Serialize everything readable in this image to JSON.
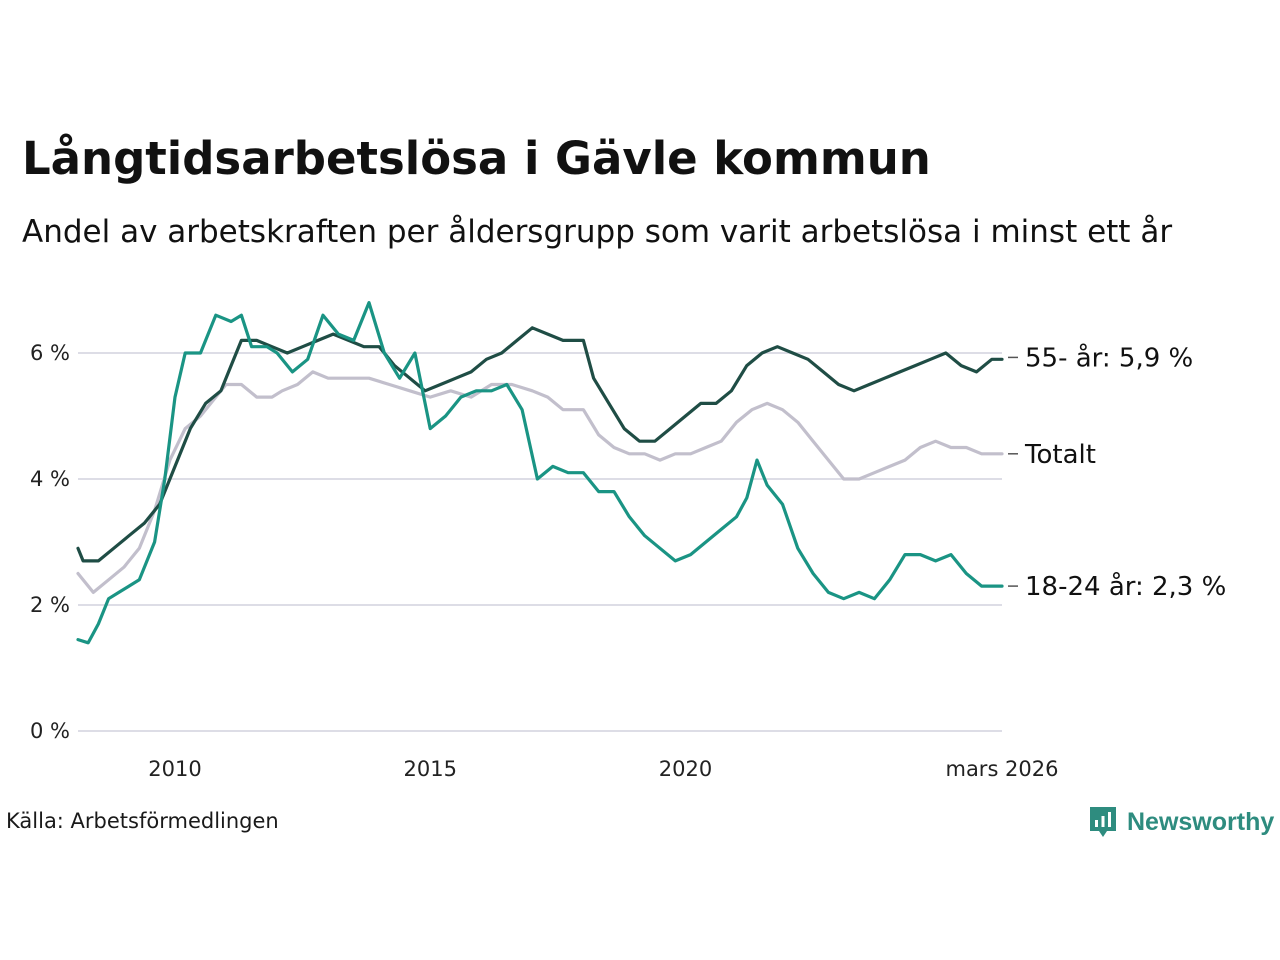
{
  "title": "Långtidsarbetslösa i Gävle kommun",
  "subtitle": "Andel av arbetskraften per åldersgrupp som varit arbetslösa i minst ett år",
  "source": "Källa: Arbetsförmedlingen",
  "brand": "Newsworthy",
  "colors": {
    "series_55": "#1f4d45",
    "series_total": "#c2bfcc",
    "series_18_24": "#1a9484",
    "grid": "#dddde6",
    "brand": "#2e8c7f"
  },
  "chart_data": {
    "type": "line",
    "title": "Långtidsarbetslösa i Gävle kommun",
    "xlabel": "",
    "ylabel": "",
    "xlim": [
      2008.1,
      2026.2
    ],
    "ylim": [
      0,
      7
    ],
    "y_ticks": [
      0,
      2,
      4,
      6
    ],
    "y_tick_labels": [
      "0 %",
      "2 %",
      "4 %",
      "6 %"
    ],
    "x_ticks": [
      2010,
      2015,
      2020,
      2026.2
    ],
    "x_tick_labels": [
      "2010",
      "2015",
      "2020",
      "mars 2026"
    ],
    "grid": true,
    "series": [
      {
        "name": "Totalt",
        "end_label": "Totalt",
        "color_key": "series_total",
        "points": [
          [
            2008.1,
            2.5
          ],
          [
            2008.4,
            2.2
          ],
          [
            2008.7,
            2.4
          ],
          [
            2009.0,
            2.6
          ],
          [
            2009.3,
            2.9
          ],
          [
            2009.6,
            3.5
          ],
          [
            2009.9,
            4.3
          ],
          [
            2010.2,
            4.8
          ],
          [
            2010.5,
            5.0
          ],
          [
            2010.8,
            5.3
          ],
          [
            2011.0,
            5.5
          ],
          [
            2011.3,
            5.5
          ],
          [
            2011.6,
            5.3
          ],
          [
            2011.9,
            5.3
          ],
          [
            2012.1,
            5.4
          ],
          [
            2012.4,
            5.5
          ],
          [
            2012.7,
            5.7
          ],
          [
            2013.0,
            5.6
          ],
          [
            2013.4,
            5.6
          ],
          [
            2013.8,
            5.6
          ],
          [
            2014.2,
            5.5
          ],
          [
            2014.6,
            5.4
          ],
          [
            2015.0,
            5.3
          ],
          [
            2015.4,
            5.4
          ],
          [
            2015.8,
            5.3
          ],
          [
            2016.2,
            5.5
          ],
          [
            2016.6,
            5.5
          ],
          [
            2017.0,
            5.4
          ],
          [
            2017.3,
            5.3
          ],
          [
            2017.6,
            5.1
          ],
          [
            2018.0,
            5.1
          ],
          [
            2018.3,
            4.7
          ],
          [
            2018.6,
            4.5
          ],
          [
            2018.9,
            4.4
          ],
          [
            2019.2,
            4.4
          ],
          [
            2019.5,
            4.3
          ],
          [
            2019.8,
            4.4
          ],
          [
            2020.1,
            4.4
          ],
          [
            2020.4,
            4.5
          ],
          [
            2020.7,
            4.6
          ],
          [
            2021.0,
            4.9
          ],
          [
            2021.3,
            5.1
          ],
          [
            2021.6,
            5.2
          ],
          [
            2021.9,
            5.1
          ],
          [
            2022.2,
            4.9
          ],
          [
            2022.5,
            4.6
          ],
          [
            2022.8,
            4.3
          ],
          [
            2023.1,
            4.0
          ],
          [
            2023.4,
            4.0
          ],
          [
            2023.7,
            4.1
          ],
          [
            2024.0,
            4.2
          ],
          [
            2024.3,
            4.3
          ],
          [
            2024.6,
            4.5
          ],
          [
            2024.9,
            4.6
          ],
          [
            2025.2,
            4.5
          ],
          [
            2025.5,
            4.5
          ],
          [
            2025.8,
            4.4
          ],
          [
            2026.2,
            4.4
          ]
        ]
      },
      {
        "name": "55- år",
        "end_label": "55- år: 5,9 %",
        "color_key": "series_55",
        "points": [
          [
            2008.1,
            2.9
          ],
          [
            2008.2,
            2.7
          ],
          [
            2008.5,
            2.7
          ],
          [
            2008.8,
            2.9
          ],
          [
            2009.1,
            3.1
          ],
          [
            2009.4,
            3.3
          ],
          [
            2009.7,
            3.6
          ],
          [
            2010.0,
            4.2
          ],
          [
            2010.3,
            4.8
          ],
          [
            2010.6,
            5.2
          ],
          [
            2010.9,
            5.4
          ],
          [
            2011.1,
            5.8
          ],
          [
            2011.3,
            6.2
          ],
          [
            2011.6,
            6.2
          ],
          [
            2011.9,
            6.1
          ],
          [
            2012.2,
            6.0
          ],
          [
            2012.5,
            6.1
          ],
          [
            2012.8,
            6.2
          ],
          [
            2013.1,
            6.3
          ],
          [
            2013.4,
            6.2
          ],
          [
            2013.7,
            6.1
          ],
          [
            2014.0,
            6.1
          ],
          [
            2014.3,
            5.8
          ],
          [
            2014.6,
            5.6
          ],
          [
            2014.9,
            5.4
          ],
          [
            2015.2,
            5.5
          ],
          [
            2015.5,
            5.6
          ],
          [
            2015.8,
            5.7
          ],
          [
            2016.1,
            5.9
          ],
          [
            2016.4,
            6.0
          ],
          [
            2016.7,
            6.2
          ],
          [
            2017.0,
            6.4
          ],
          [
            2017.3,
            6.3
          ],
          [
            2017.6,
            6.2
          ],
          [
            2018.0,
            6.2
          ],
          [
            2018.2,
            5.6
          ],
          [
            2018.5,
            5.2
          ],
          [
            2018.8,
            4.8
          ],
          [
            2019.1,
            4.6
          ],
          [
            2019.4,
            4.6
          ],
          [
            2019.7,
            4.8
          ],
          [
            2020.0,
            5.0
          ],
          [
            2020.3,
            5.2
          ],
          [
            2020.6,
            5.2
          ],
          [
            2020.9,
            5.4
          ],
          [
            2021.2,
            5.8
          ],
          [
            2021.5,
            6.0
          ],
          [
            2021.8,
            6.1
          ],
          [
            2022.1,
            6.0
          ],
          [
            2022.4,
            5.9
          ],
          [
            2022.7,
            5.7
          ],
          [
            2023.0,
            5.5
          ],
          [
            2023.3,
            5.4
          ],
          [
            2023.6,
            5.5
          ],
          [
            2023.9,
            5.6
          ],
          [
            2024.2,
            5.7
          ],
          [
            2024.5,
            5.8
          ],
          [
            2024.8,
            5.9
          ],
          [
            2025.1,
            6.0
          ],
          [
            2025.4,
            5.8
          ],
          [
            2025.7,
            5.7
          ],
          [
            2026.0,
            5.9
          ],
          [
            2026.2,
            5.9
          ]
        ]
      },
      {
        "name": "18-24 år",
        "end_label": "18-24 år: 2,3 %",
        "color_key": "series_18_24",
        "points": [
          [
            2008.1,
            1.45
          ],
          [
            2008.3,
            1.4
          ],
          [
            2008.5,
            1.7
          ],
          [
            2008.7,
            2.1
          ],
          [
            2008.9,
            2.2
          ],
          [
            2009.1,
            2.3
          ],
          [
            2009.3,
            2.4
          ],
          [
            2009.6,
            3.0
          ],
          [
            2009.8,
            4.0
          ],
          [
            2010.0,
            5.3
          ],
          [
            2010.2,
            6.0
          ],
          [
            2010.5,
            6.0
          ],
          [
            2010.8,
            6.6
          ],
          [
            2011.1,
            6.5
          ],
          [
            2011.3,
            6.6
          ],
          [
            2011.5,
            6.1
          ],
          [
            2011.8,
            6.1
          ],
          [
            2012.0,
            6.0
          ],
          [
            2012.3,
            5.7
          ],
          [
            2012.6,
            5.9
          ],
          [
            2012.9,
            6.6
          ],
          [
            2013.2,
            6.3
          ],
          [
            2013.5,
            6.2
          ],
          [
            2013.8,
            6.8
          ],
          [
            2014.1,
            6.0
          ],
          [
            2014.4,
            5.6
          ],
          [
            2014.7,
            6.0
          ],
          [
            2015.0,
            4.8
          ],
          [
            2015.3,
            5.0
          ],
          [
            2015.6,
            5.3
          ],
          [
            2015.9,
            5.4
          ],
          [
            2016.2,
            5.4
          ],
          [
            2016.5,
            5.5
          ],
          [
            2016.8,
            5.1
          ],
          [
            2017.1,
            4.0
          ],
          [
            2017.4,
            4.2
          ],
          [
            2017.7,
            4.1
          ],
          [
            2018.0,
            4.1
          ],
          [
            2018.3,
            3.8
          ],
          [
            2018.6,
            3.8
          ],
          [
            2018.9,
            3.4
          ],
          [
            2019.2,
            3.1
          ],
          [
            2019.5,
            2.9
          ],
          [
            2019.8,
            2.7
          ],
          [
            2020.1,
            2.8
          ],
          [
            2020.4,
            3.0
          ],
          [
            2020.7,
            3.2
          ],
          [
            2021.0,
            3.4
          ],
          [
            2021.2,
            3.7
          ],
          [
            2021.4,
            4.3
          ],
          [
            2021.6,
            3.9
          ],
          [
            2021.9,
            3.6
          ],
          [
            2022.2,
            2.9
          ],
          [
            2022.5,
            2.5
          ],
          [
            2022.8,
            2.2
          ],
          [
            2023.1,
            2.1
          ],
          [
            2023.4,
            2.2
          ],
          [
            2023.7,
            2.1
          ],
          [
            2024.0,
            2.4
          ],
          [
            2024.3,
            2.8
          ],
          [
            2024.6,
            2.8
          ],
          [
            2024.9,
            2.7
          ],
          [
            2025.2,
            2.8
          ],
          [
            2025.5,
            2.5
          ],
          [
            2025.8,
            2.3
          ],
          [
            2026.2,
            2.3
          ]
        ]
      }
    ]
  }
}
